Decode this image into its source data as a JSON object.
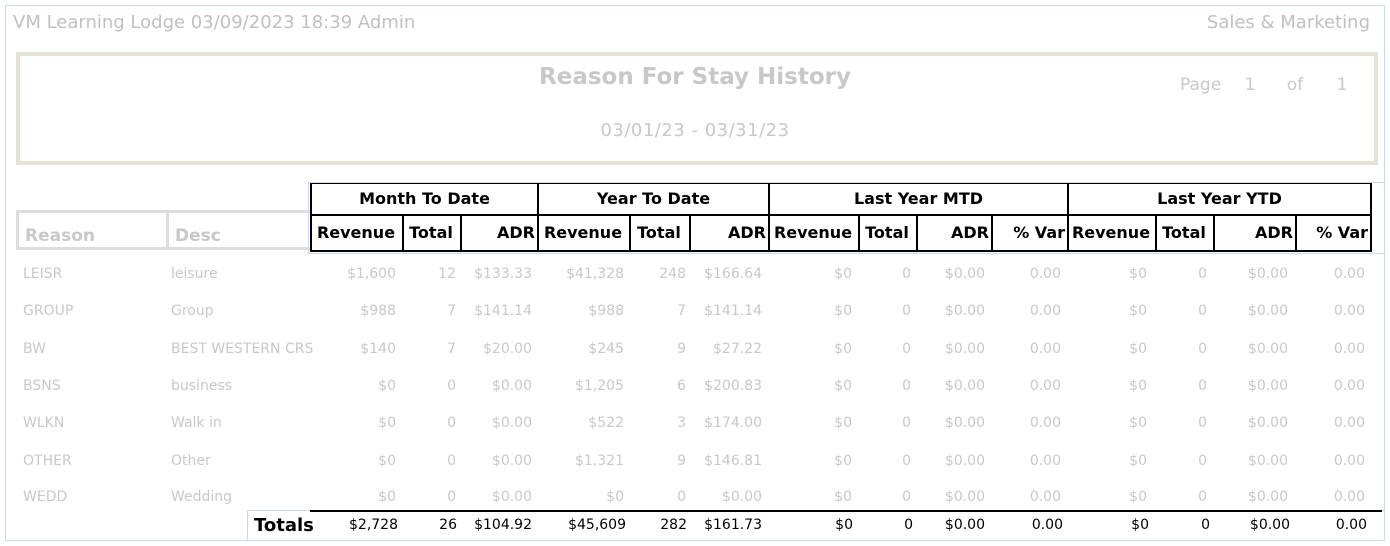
{
  "header": {
    "left": "VM Learning Lodge 03/09/2023 18:39  Admin",
    "right": "Sales & Marketing"
  },
  "report": {
    "title": "Reason For Stay History",
    "date_range": "03/01/23 - 03/31/23",
    "page_label": "Page",
    "page_num": "1",
    "of_label": "of",
    "page_total": "1"
  },
  "columns": {
    "reason": "Reason",
    "desc": "Desc",
    "groups": [
      "Month To Date",
      "Year To Date",
      "Last Year MTD",
      "Last Year YTD"
    ],
    "revenue": "Revenue",
    "total": "Total",
    "adr": "ADR",
    "var": "% Var"
  },
  "rows": [
    {
      "reason": "LEISR",
      "desc": "leisure",
      "mtd_rev": "$1,600",
      "mtd_tot": "12",
      "mtd_adr": "$133.33",
      "ytd_rev": "$41,328",
      "ytd_tot": "248",
      "ytd_adr": "$166.64",
      "lym_rev": "$0",
      "lym_tot": "0",
      "lym_adr": "$0.00",
      "lym_var": "0.00",
      "lyy_rev": "$0",
      "lyy_tot": "0",
      "lyy_adr": "$0.00",
      "lyy_var": "0.00"
    },
    {
      "reason": "GROUP",
      "desc": "Group",
      "mtd_rev": "$988",
      "mtd_tot": "7",
      "mtd_adr": "$141.14",
      "ytd_rev": "$988",
      "ytd_tot": "7",
      "ytd_adr": "$141.14",
      "lym_rev": "$0",
      "lym_tot": "0",
      "lym_adr": "$0.00",
      "lym_var": "0.00",
      "lyy_rev": "$0",
      "lyy_tot": "0",
      "lyy_adr": "$0.00",
      "lyy_var": "0.00"
    },
    {
      "reason": "BW",
      "desc": "BEST WESTERN CRS",
      "mtd_rev": "$140",
      "mtd_tot": "7",
      "mtd_adr": "$20.00",
      "ytd_rev": "$245",
      "ytd_tot": "9",
      "ytd_adr": "$27.22",
      "lym_rev": "$0",
      "lym_tot": "0",
      "lym_adr": "$0.00",
      "lym_var": "0.00",
      "lyy_rev": "$0",
      "lyy_tot": "0",
      "lyy_adr": "$0.00",
      "lyy_var": "0.00"
    },
    {
      "reason": "BSNS",
      "desc": "business",
      "mtd_rev": "$0",
      "mtd_tot": "0",
      "mtd_adr": "$0.00",
      "ytd_rev": "$1,205",
      "ytd_tot": "6",
      "ytd_adr": "$200.83",
      "lym_rev": "$0",
      "lym_tot": "0",
      "lym_adr": "$0.00",
      "lym_var": "0.00",
      "lyy_rev": "$0",
      "lyy_tot": "0",
      "lyy_adr": "$0.00",
      "lyy_var": "0.00"
    },
    {
      "reason": "WLKN",
      "desc": "Walk in",
      "mtd_rev": "$0",
      "mtd_tot": "0",
      "mtd_adr": "$0.00",
      "ytd_rev": "$522",
      "ytd_tot": "3",
      "ytd_adr": "$174.00",
      "lym_rev": "$0",
      "lym_tot": "0",
      "lym_adr": "$0.00",
      "lym_var": "0.00",
      "lyy_rev": "$0",
      "lyy_tot": "0",
      "lyy_adr": "$0.00",
      "lyy_var": "0.00"
    },
    {
      "reason": "OTHER",
      "desc": "Other",
      "mtd_rev": "$0",
      "mtd_tot": "0",
      "mtd_adr": "$0.00",
      "ytd_rev": "$1,321",
      "ytd_tot": "9",
      "ytd_adr": "$146.81",
      "lym_rev": "$0",
      "lym_tot": "0",
      "lym_adr": "$0.00",
      "lym_var": "0.00",
      "lyy_rev": "$0",
      "lyy_tot": "0",
      "lyy_adr": "$0.00",
      "lyy_var": "0.00"
    },
    {
      "reason": "WEDD",
      "desc": "Wedding",
      "mtd_rev": "$0",
      "mtd_tot": "0",
      "mtd_adr": "$0.00",
      "ytd_rev": "$0",
      "ytd_tot": "0",
      "ytd_adr": "$0.00",
      "lym_rev": "$0",
      "lym_tot": "0",
      "lym_adr": "$0.00",
      "lym_var": "0.00",
      "lyy_rev": "$0",
      "lyy_tot": "0",
      "lyy_adr": "$0.00",
      "lyy_var": "0.00"
    }
  ],
  "totals": {
    "label": "Totals",
    "mtd_rev": "$2,728",
    "mtd_tot": "26",
    "mtd_adr": "$104.92",
    "ytd_rev": "$45,609",
    "ytd_tot": "282",
    "ytd_adr": "$161.73",
    "lym_rev": "$0",
    "lym_tot": "0",
    "lym_adr": "$0.00",
    "lym_var": "0.00",
    "lyy_rev": "$0",
    "lyy_tot": "0",
    "lyy_adr": "$0.00",
    "lyy_var": "0.00"
  },
  "colors": {
    "faded_text": "#c8c8c8",
    "border_blue": "#c9dbea",
    "title_border": "#e6e3d6"
  }
}
